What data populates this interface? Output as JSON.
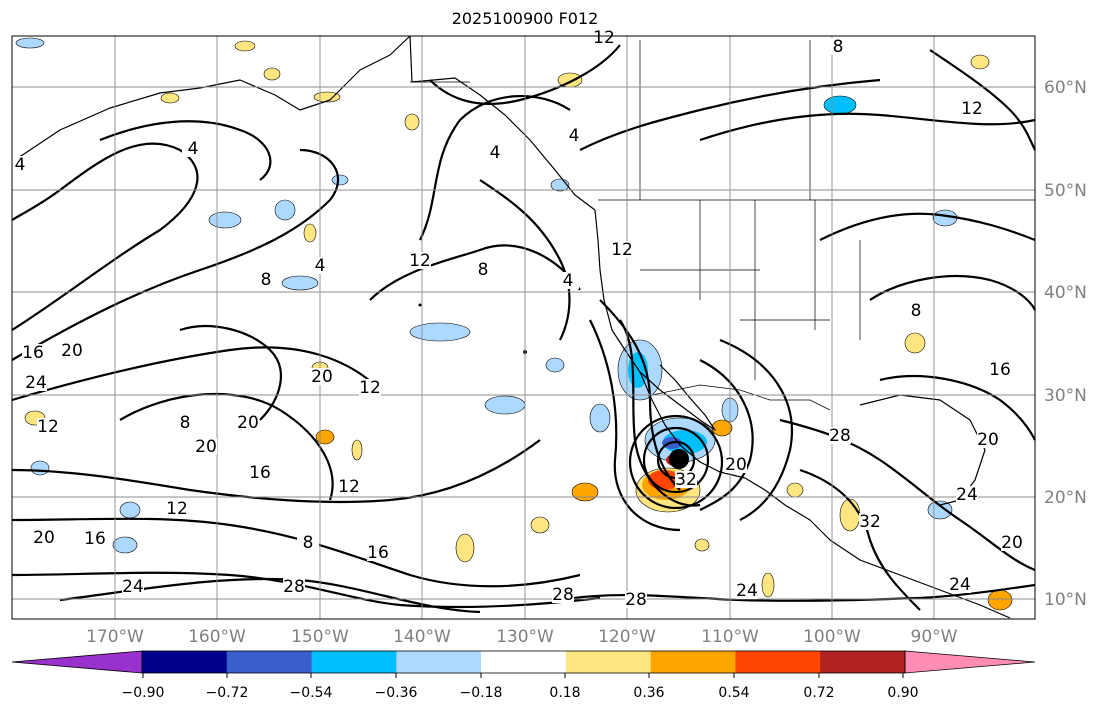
{
  "title": "2025100900 F012",
  "map": {
    "latitude_labels": [
      "60°N",
      "50°N",
      "40°N",
      "30°N",
      "20°N",
      "10°N"
    ],
    "longitude_labels": [
      "170°W",
      "160°W",
      "150°W",
      "140°W",
      "130°W",
      "120°W",
      "110°W",
      "100°W",
      "90°W"
    ],
    "contour_labels": [
      "12",
      "8",
      "12",
      "4",
      "4",
      "4",
      "4",
      "12",
      "8",
      "4",
      "8",
      "12",
      "4",
      "16",
      "20",
      "24",
      "12",
      "8",
      "20",
      "20",
      "12",
      "20",
      "16",
      "12",
      "12",
      "16",
      "20",
      "8",
      "16",
      "24",
      "28",
      "28",
      "28",
      "24",
      "32",
      "20",
      "28",
      "32",
      "24",
      "20",
      "16",
      "20",
      "24",
      "8"
    ]
  },
  "colorbar": {
    "tick_labels": [
      "−0.90",
      "−0.72",
      "−0.54",
      "−0.36",
      "−0.18",
      "0.18",
      "0.36",
      "0.54",
      "0.72",
      "0.90"
    ],
    "colors": [
      "#9932cc",
      "#00008b",
      "#3a5fcd",
      "#00bfff",
      "#add8ff",
      "#ffffff",
      "#ffe680",
      "#ffa500",
      "#ff4500",
      "#b22222",
      "#ff8cb4",
      "#ff8cb4"
    ]
  }
}
